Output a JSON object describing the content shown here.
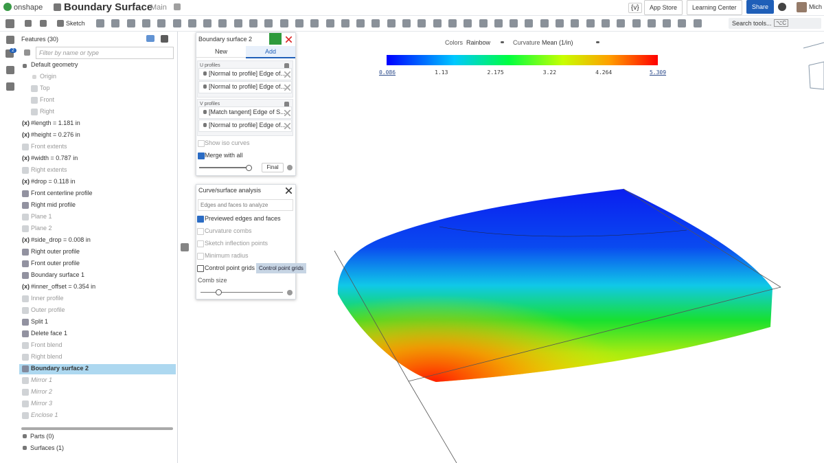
{
  "header": {
    "brand": "onshape",
    "title": "Boundary Surface",
    "branch": "Main",
    "variables_button": "{v}",
    "app_store": "App Store",
    "learning_center": "Learning Center",
    "share": "Share",
    "user": "Mich",
    "notifications": "2"
  },
  "toolbar": {
    "sketch": "Sketch",
    "search": "Search tools...",
    "shortcut": "⌥C"
  },
  "features": {
    "title": "Features (30)",
    "filter_placeholder": "Filter by name or type",
    "items": [
      {
        "text": "Default geometry",
        "icon": "caret",
        "indent": 0,
        "state": "normal"
      },
      {
        "text": "Origin",
        "icon": "origin",
        "indent": 1,
        "state": "dim"
      },
      {
        "text": "Top",
        "icon": "plane",
        "indent": 1,
        "state": "dim"
      },
      {
        "text": "Front",
        "icon": "plane",
        "indent": 1,
        "state": "dim"
      },
      {
        "text": "Right",
        "icon": "plane",
        "indent": 1,
        "state": "dim"
      },
      {
        "prefix": "(x)",
        "text": "#length = 1.181 in",
        "icon": "var",
        "indent": 0,
        "state": "normal"
      },
      {
        "prefix": "(x)",
        "text": "#height = 0.276 in",
        "icon": "var",
        "indent": 0,
        "state": "normal"
      },
      {
        "text": "Front extents",
        "icon": "sketch",
        "indent": 0,
        "state": "dim"
      },
      {
        "prefix": "(x)",
        "text": "#width = 0.787 in",
        "icon": "var",
        "indent": 0,
        "state": "normal"
      },
      {
        "text": "Right extents",
        "icon": "sketch",
        "indent": 0,
        "state": "dim"
      },
      {
        "prefix": "(x)",
        "text": "#drop = 0.118 in",
        "icon": "var",
        "indent": 0,
        "state": "normal"
      },
      {
        "text": "Front centerline profile",
        "icon": "sketch",
        "indent": 0,
        "state": "normal"
      },
      {
        "text": "Right mid profile",
        "icon": "sketch",
        "indent": 0,
        "state": "normal"
      },
      {
        "text": "Plane 1",
        "icon": "plane",
        "indent": 0,
        "state": "dim"
      },
      {
        "text": "Plane 2",
        "icon": "plane",
        "indent": 0,
        "state": "dim"
      },
      {
        "prefix": "(x)",
        "text": "#side_drop = 0.008 in",
        "icon": "var",
        "indent": 0,
        "state": "normal"
      },
      {
        "text": "Right outer profile",
        "icon": "sketch",
        "indent": 0,
        "state": "normal"
      },
      {
        "text": "Front outer profile",
        "icon": "sketch",
        "indent": 0,
        "state": "normal"
      },
      {
        "text": "Boundary surface 1",
        "icon": "surface",
        "indent": 0,
        "state": "normal"
      },
      {
        "prefix": "(x)",
        "text": "#inner_offset = 0.354 in",
        "icon": "var",
        "indent": 0,
        "state": "normal"
      },
      {
        "text": "Inner profile",
        "icon": "sketch",
        "indent": 0,
        "state": "dim"
      },
      {
        "text": "Outer profile",
        "icon": "sketch",
        "indent": 0,
        "state": "dim"
      },
      {
        "text": "Split 1",
        "icon": "split",
        "indent": 0,
        "state": "normal"
      },
      {
        "text": "Delete face 1",
        "icon": "delete",
        "indent": 0,
        "state": "normal"
      },
      {
        "text": "Front blend",
        "icon": "sketch",
        "indent": 0,
        "state": "dim"
      },
      {
        "text": "Right blend",
        "icon": "sketch",
        "indent": 0,
        "state": "dim"
      },
      {
        "text": "Boundary surface 2",
        "icon": "surface",
        "indent": 0,
        "state": "selected"
      },
      {
        "text": "Mirror 1",
        "icon": "mirror",
        "indent": 0,
        "state": "rolled"
      },
      {
        "text": "Mirror 2",
        "icon": "mirror",
        "indent": 0,
        "state": "rolled"
      },
      {
        "text": "Mirror 3",
        "icon": "mirror",
        "indent": 0,
        "state": "rolled"
      },
      {
        "text": "Enclose 1",
        "icon": "mirror",
        "indent": 0,
        "state": "rolled"
      }
    ],
    "parts": "Parts (0)",
    "surfaces": "Surfaces (1)"
  },
  "boundary_dialog": {
    "title": "Boundary surface 2",
    "tabs": [
      {
        "text": "New",
        "active": false
      },
      {
        "text": "Add",
        "active": true
      }
    ],
    "u_label": "U profiles",
    "u_items": [
      "[Normal to profile] Edge of...",
      "[Normal to profile] Edge of..."
    ],
    "v_label": "V profiles",
    "v_items": [
      "[Match tangent] Edge of S...",
      "[Normal to profile] Edge of..."
    ],
    "options": [
      {
        "text": "Show iso curves",
        "checked": false,
        "enabled": false
      },
      {
        "text": "Merge with all",
        "checked": true,
        "enabled": true
      }
    ],
    "final": "Final"
  },
  "analysis_dialog": {
    "title": "Curve/surface analysis",
    "input_placeholder": "Edges and faces to analyze",
    "options": [
      {
        "text": "Previewed edges and faces",
        "checked": true,
        "enabled": true
      },
      {
        "text": "Curvature combs",
        "checked": false,
        "enabled": false
      },
      {
        "text": "Sketch inflection points",
        "checked": false,
        "enabled": false
      },
      {
        "text": "Minimum radius",
        "checked": false,
        "enabled": false
      },
      {
        "text": "Control point grids",
        "checked": false,
        "enabled": true
      }
    ],
    "tooltip": "Control point grids",
    "comb_size": "Comb size"
  },
  "analysis_bar": {
    "colors_label": "Colors",
    "colors_value": "Rainbow",
    "curvature_label": "Curvature",
    "curvature_value": "Mean (1/in)",
    "scale_labels": [
      "0.086",
      "1.13",
      "2.175",
      "3.22",
      "4.264",
      "5.309"
    ]
  }
}
